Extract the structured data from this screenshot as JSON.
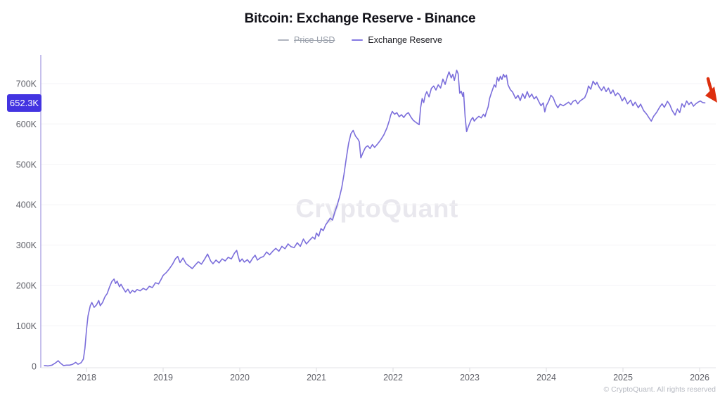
{
  "header": {
    "title": "Bitcoin: Exchange Reserve - Binance"
  },
  "legend": {
    "items": [
      {
        "label": "Price USD",
        "swatch_color": "#b0b4bf",
        "disabled": true
      },
      {
        "label": "Exchange Reserve",
        "swatch_color": "#8578e2",
        "disabled": false
      }
    ]
  },
  "badge": {
    "value": "652.3K",
    "bg_color": "#4334e1",
    "text_color": "#ffffff"
  },
  "watermark": "CryptoQuant",
  "footer": {
    "copyright": "© CryptoQuant. All rights reserved"
  },
  "annotation": {
    "red_arrow_color": "#dd2f0e"
  },
  "colors": {
    "line": "#7b6edb",
    "axis": "#b3abe6",
    "grid": "#f4f3f6",
    "baseline": "#e3e3e7",
    "tick": "#d8d8dc",
    "tick_label": "#5f6068"
  },
  "chart_data": {
    "type": "line",
    "title": "Bitcoin: Exchange Reserve - Binance",
    "xlabel": "",
    "ylabel": "",
    "y_unit": "BTC (thousands)",
    "grid": "horizontal",
    "legend_position": "top",
    "hidden_series": [
      "Price USD"
    ],
    "x_domain": [
      2017.42,
      2026.3
    ],
    "y_domain": [
      0,
      770
    ],
    "x_ticks": {
      "values": [
        2018,
        2019,
        2020,
        2021,
        2022,
        2023,
        2024,
        2025,
        2026
      ],
      "labels": [
        "2018",
        "2019",
        "2020",
        "2021",
        "2022",
        "2023",
        "2024",
        "2025",
        "2026"
      ]
    },
    "y_ticks": {
      "values": [
        0,
        100,
        200,
        300,
        400,
        500,
        600,
        700
      ],
      "labels": [
        "0",
        "100K",
        "200K",
        "300K",
        "400K",
        "500K",
        "600K",
        "700K"
      ]
    },
    "last_value": 652.3,
    "last_value_label": "652.3K",
    "series": [
      {
        "name": "Exchange Reserve",
        "color": "#7b6edb",
        "points": [
          [
            2017.45,
            2
          ],
          [
            2017.5,
            1
          ],
          [
            2017.55,
            3
          ],
          [
            2017.6,
            9
          ],
          [
            2017.63,
            14
          ],
          [
            2017.66,
            8
          ],
          [
            2017.7,
            2
          ],
          [
            2017.74,
            3
          ],
          [
            2017.78,
            3
          ],
          [
            2017.82,
            5
          ],
          [
            2017.86,
            10
          ],
          [
            2017.89,
            5
          ],
          [
            2017.93,
            9
          ],
          [
            2017.96,
            18
          ],
          [
            2017.98,
            45
          ],
          [
            2018.0,
            90
          ],
          [
            2018.02,
            125
          ],
          [
            2018.05,
            150
          ],
          [
            2018.07,
            158
          ],
          [
            2018.1,
            146
          ],
          [
            2018.13,
            152
          ],
          [
            2018.16,
            163
          ],
          [
            2018.18,
            150
          ],
          [
            2018.21,
            158
          ],
          [
            2018.24,
            172
          ],
          [
            2018.27,
            180
          ],
          [
            2018.3,
            196
          ],
          [
            2018.33,
            210
          ],
          [
            2018.36,
            216
          ],
          [
            2018.38,
            205
          ],
          [
            2018.4,
            211
          ],
          [
            2018.43,
            197
          ],
          [
            2018.45,
            203
          ],
          [
            2018.48,
            193
          ],
          [
            2018.51,
            184
          ],
          [
            2018.54,
            191
          ],
          [
            2018.57,
            181
          ],
          [
            2018.6,
            188
          ],
          [
            2018.63,
            184
          ],
          [
            2018.66,
            190
          ],
          [
            2018.7,
            187
          ],
          [
            2018.74,
            193
          ],
          [
            2018.78,
            189
          ],
          [
            2018.82,
            198
          ],
          [
            2018.86,
            195
          ],
          [
            2018.9,
            207
          ],
          [
            2018.94,
            204
          ],
          [
            2018.97,
            214
          ],
          [
            2019.0,
            225
          ],
          [
            2019.04,
            232
          ],
          [
            2019.08,
            241
          ],
          [
            2019.12,
            252
          ],
          [
            2019.16,
            266
          ],
          [
            2019.19,
            272
          ],
          [
            2019.22,
            257
          ],
          [
            2019.26,
            268
          ],
          [
            2019.3,
            254
          ],
          [
            2019.34,
            248
          ],
          [
            2019.38,
            242
          ],
          [
            2019.42,
            251
          ],
          [
            2019.46,
            259
          ],
          [
            2019.5,
            253
          ],
          [
            2019.54,
            265
          ],
          [
            2019.58,
            278
          ],
          [
            2019.62,
            261
          ],
          [
            2019.65,
            254
          ],
          [
            2019.69,
            263
          ],
          [
            2019.73,
            256
          ],
          [
            2019.77,
            266
          ],
          [
            2019.81,
            261
          ],
          [
            2019.85,
            270
          ],
          [
            2019.89,
            266
          ],
          [
            2019.93,
            280
          ],
          [
            2019.96,
            287
          ],
          [
            2019.98,
            272
          ],
          [
            2020.0,
            259
          ],
          [
            2020.03,
            266
          ],
          [
            2020.06,
            258
          ],
          [
            2020.1,
            264
          ],
          [
            2020.13,
            256
          ],
          [
            2020.17,
            268
          ],
          [
            2020.2,
            275
          ],
          [
            2020.23,
            263
          ],
          [
            2020.27,
            269
          ],
          [
            2020.31,
            272
          ],
          [
            2020.35,
            283
          ],
          [
            2020.39,
            276
          ],
          [
            2020.43,
            285
          ],
          [
            2020.47,
            292
          ],
          [
            2020.51,
            285
          ],
          [
            2020.55,
            297
          ],
          [
            2020.59,
            291
          ],
          [
            2020.63,
            303
          ],
          [
            2020.67,
            296
          ],
          [
            2020.71,
            294
          ],
          [
            2020.75,
            306
          ],
          [
            2020.79,
            297
          ],
          [
            2020.83,
            315
          ],
          [
            2020.87,
            303
          ],
          [
            2020.91,
            312
          ],
          [
            2020.95,
            320
          ],
          [
            2020.98,
            315
          ],
          [
            2021.0,
            330
          ],
          [
            2021.03,
            322
          ],
          [
            2021.06,
            341
          ],
          [
            2021.09,
            336
          ],
          [
            2021.12,
            350
          ],
          [
            2021.15,
            358
          ],
          [
            2021.18,
            367
          ],
          [
            2021.21,
            362
          ],
          [
            2021.24,
            382
          ],
          [
            2021.27,
            398
          ],
          [
            2021.3,
            418
          ],
          [
            2021.33,
            442
          ],
          [
            2021.36,
            475
          ],
          [
            2021.39,
            515
          ],
          [
            2021.42,
            552
          ],
          [
            2021.45,
            576
          ],
          [
            2021.48,
            584
          ],
          [
            2021.51,
            570
          ],
          [
            2021.54,
            563
          ],
          [
            2021.56,
            556
          ],
          [
            2021.58,
            516
          ],
          [
            2021.61,
            530
          ],
          [
            2021.64,
            542
          ],
          [
            2021.67,
            546
          ],
          [
            2021.7,
            539
          ],
          [
            2021.73,
            549
          ],
          [
            2021.76,
            542
          ],
          [
            2021.8,
            551
          ],
          [
            2021.84,
            561
          ],
          [
            2021.88,
            573
          ],
          [
            2021.92,
            590
          ],
          [
            2021.95,
            608
          ],
          [
            2021.97,
            622
          ],
          [
            2021.99,
            631
          ],
          [
            2022.02,
            624
          ],
          [
            2022.05,
            628
          ],
          [
            2022.08,
            618
          ],
          [
            2022.11,
            623
          ],
          [
            2022.14,
            616
          ],
          [
            2022.17,
            624
          ],
          [
            2022.2,
            628
          ],
          [
            2022.23,
            618
          ],
          [
            2022.26,
            610
          ],
          [
            2022.29,
            605
          ],
          [
            2022.32,
            601
          ],
          [
            2022.34,
            598
          ],
          [
            2022.36,
            640
          ],
          [
            2022.38,
            663
          ],
          [
            2022.4,
            653
          ],
          [
            2022.42,
            671
          ],
          [
            2022.44,
            680
          ],
          [
            2022.47,
            667
          ],
          [
            2022.5,
            688
          ],
          [
            2022.53,
            694
          ],
          [
            2022.56,
            684
          ],
          [
            2022.59,
            697
          ],
          [
            2022.62,
            689
          ],
          [
            2022.65,
            711
          ],
          [
            2022.68,
            698
          ],
          [
            2022.71,
            718
          ],
          [
            2022.73,
            729
          ],
          [
            2022.76,
            714
          ],
          [
            2022.78,
            723
          ],
          [
            2022.8,
            708
          ],
          [
            2022.83,
            733
          ],
          [
            2022.85,
            724
          ],
          [
            2022.87,
            676
          ],
          [
            2022.89,
            681
          ],
          [
            2022.91,
            668
          ],
          [
            2022.92,
            678
          ],
          [
            2022.94,
            618
          ],
          [
            2022.96,
            581
          ],
          [
            2022.98,
            592
          ],
          [
            2023.0,
            602
          ],
          [
            2023.02,
            611
          ],
          [
            2023.04,
            616
          ],
          [
            2023.06,
            607
          ],
          [
            2023.09,
            614
          ],
          [
            2023.12,
            619
          ],
          [
            2023.15,
            615
          ],
          [
            2023.18,
            624
          ],
          [
            2023.2,
            618
          ],
          [
            2023.22,
            631
          ],
          [
            2023.24,
            642
          ],
          [
            2023.26,
            663
          ],
          [
            2023.28,
            675
          ],
          [
            2023.3,
            686
          ],
          [
            2023.32,
            697
          ],
          [
            2023.34,
            691
          ],
          [
            2023.36,
            715
          ],
          [
            2023.38,
            706
          ],
          [
            2023.4,
            718
          ],
          [
            2023.42,
            710
          ],
          [
            2023.44,
            723
          ],
          [
            2023.46,
            716
          ],
          [
            2023.48,
            721
          ],
          [
            2023.5,
            697
          ],
          [
            2023.53,
            685
          ],
          [
            2023.56,
            679
          ],
          [
            2023.6,
            663
          ],
          [
            2023.63,
            671
          ],
          [
            2023.66,
            658
          ],
          [
            2023.69,
            675
          ],
          [
            2023.72,
            663
          ],
          [
            2023.75,
            680
          ],
          [
            2023.78,
            666
          ],
          [
            2023.81,
            674
          ],
          [
            2023.84,
            662
          ],
          [
            2023.87,
            668
          ],
          [
            2023.9,
            656
          ],
          [
            2023.93,
            645
          ],
          [
            2023.96,
            652
          ],
          [
            2023.98,
            630
          ],
          [
            2024.0,
            645
          ],
          [
            2024.03,
            656
          ],
          [
            2024.06,
            671
          ],
          [
            2024.09,
            665
          ],
          [
            2024.12,
            650
          ],
          [
            2024.15,
            640
          ],
          [
            2024.18,
            649
          ],
          [
            2024.22,
            645
          ],
          [
            2024.26,
            650
          ],
          [
            2024.29,
            654
          ],
          [
            2024.32,
            648
          ],
          [
            2024.35,
            656
          ],
          [
            2024.38,
            659
          ],
          [
            2024.41,
            650
          ],
          [
            2024.44,
            657
          ],
          [
            2024.47,
            661
          ],
          [
            2024.5,
            665
          ],
          [
            2024.53,
            678
          ],
          [
            2024.55,
            694
          ],
          [
            2024.58,
            686
          ],
          [
            2024.61,
            706
          ],
          [
            2024.64,
            697
          ],
          [
            2024.66,
            703
          ],
          [
            2024.69,
            691
          ],
          [
            2024.72,
            683
          ],
          [
            2024.75,
            692
          ],
          [
            2024.78,
            680
          ],
          [
            2024.81,
            689
          ],
          [
            2024.84,
            675
          ],
          [
            2024.87,
            684
          ],
          [
            2024.9,
            670
          ],
          [
            2024.93,
            677
          ],
          [
            2024.96,
            671
          ],
          [
            2024.99,
            657
          ],
          [
            2025.02,
            666
          ],
          [
            2025.06,
            650
          ],
          [
            2025.1,
            659
          ],
          [
            2025.13,
            645
          ],
          [
            2025.16,
            654
          ],
          [
            2025.2,
            640
          ],
          [
            2025.23,
            649
          ],
          [
            2025.27,
            633
          ],
          [
            2025.31,
            624
          ],
          [
            2025.34,
            615
          ],
          [
            2025.37,
            607
          ],
          [
            2025.4,
            619
          ],
          [
            2025.44,
            629
          ],
          [
            2025.48,
            642
          ],
          [
            2025.51,
            650
          ],
          [
            2025.54,
            641
          ],
          [
            2025.58,
            656
          ],
          [
            2025.61,
            648
          ],
          [
            2025.64,
            634
          ],
          [
            2025.68,
            622
          ],
          [
            2025.71,
            637
          ],
          [
            2025.74,
            628
          ],
          [
            2025.77,
            650
          ],
          [
            2025.8,
            642
          ],
          [
            2025.83,
            657
          ],
          [
            2025.86,
            648
          ],
          [
            2025.89,
            654
          ],
          [
            2025.92,
            644
          ],
          [
            2025.95,
            650
          ],
          [
            2025.98,
            654
          ],
          [
            2026.01,
            657
          ],
          [
            2026.04,
            653
          ],
          [
            2026.07,
            652.3
          ]
        ]
      }
    ]
  }
}
